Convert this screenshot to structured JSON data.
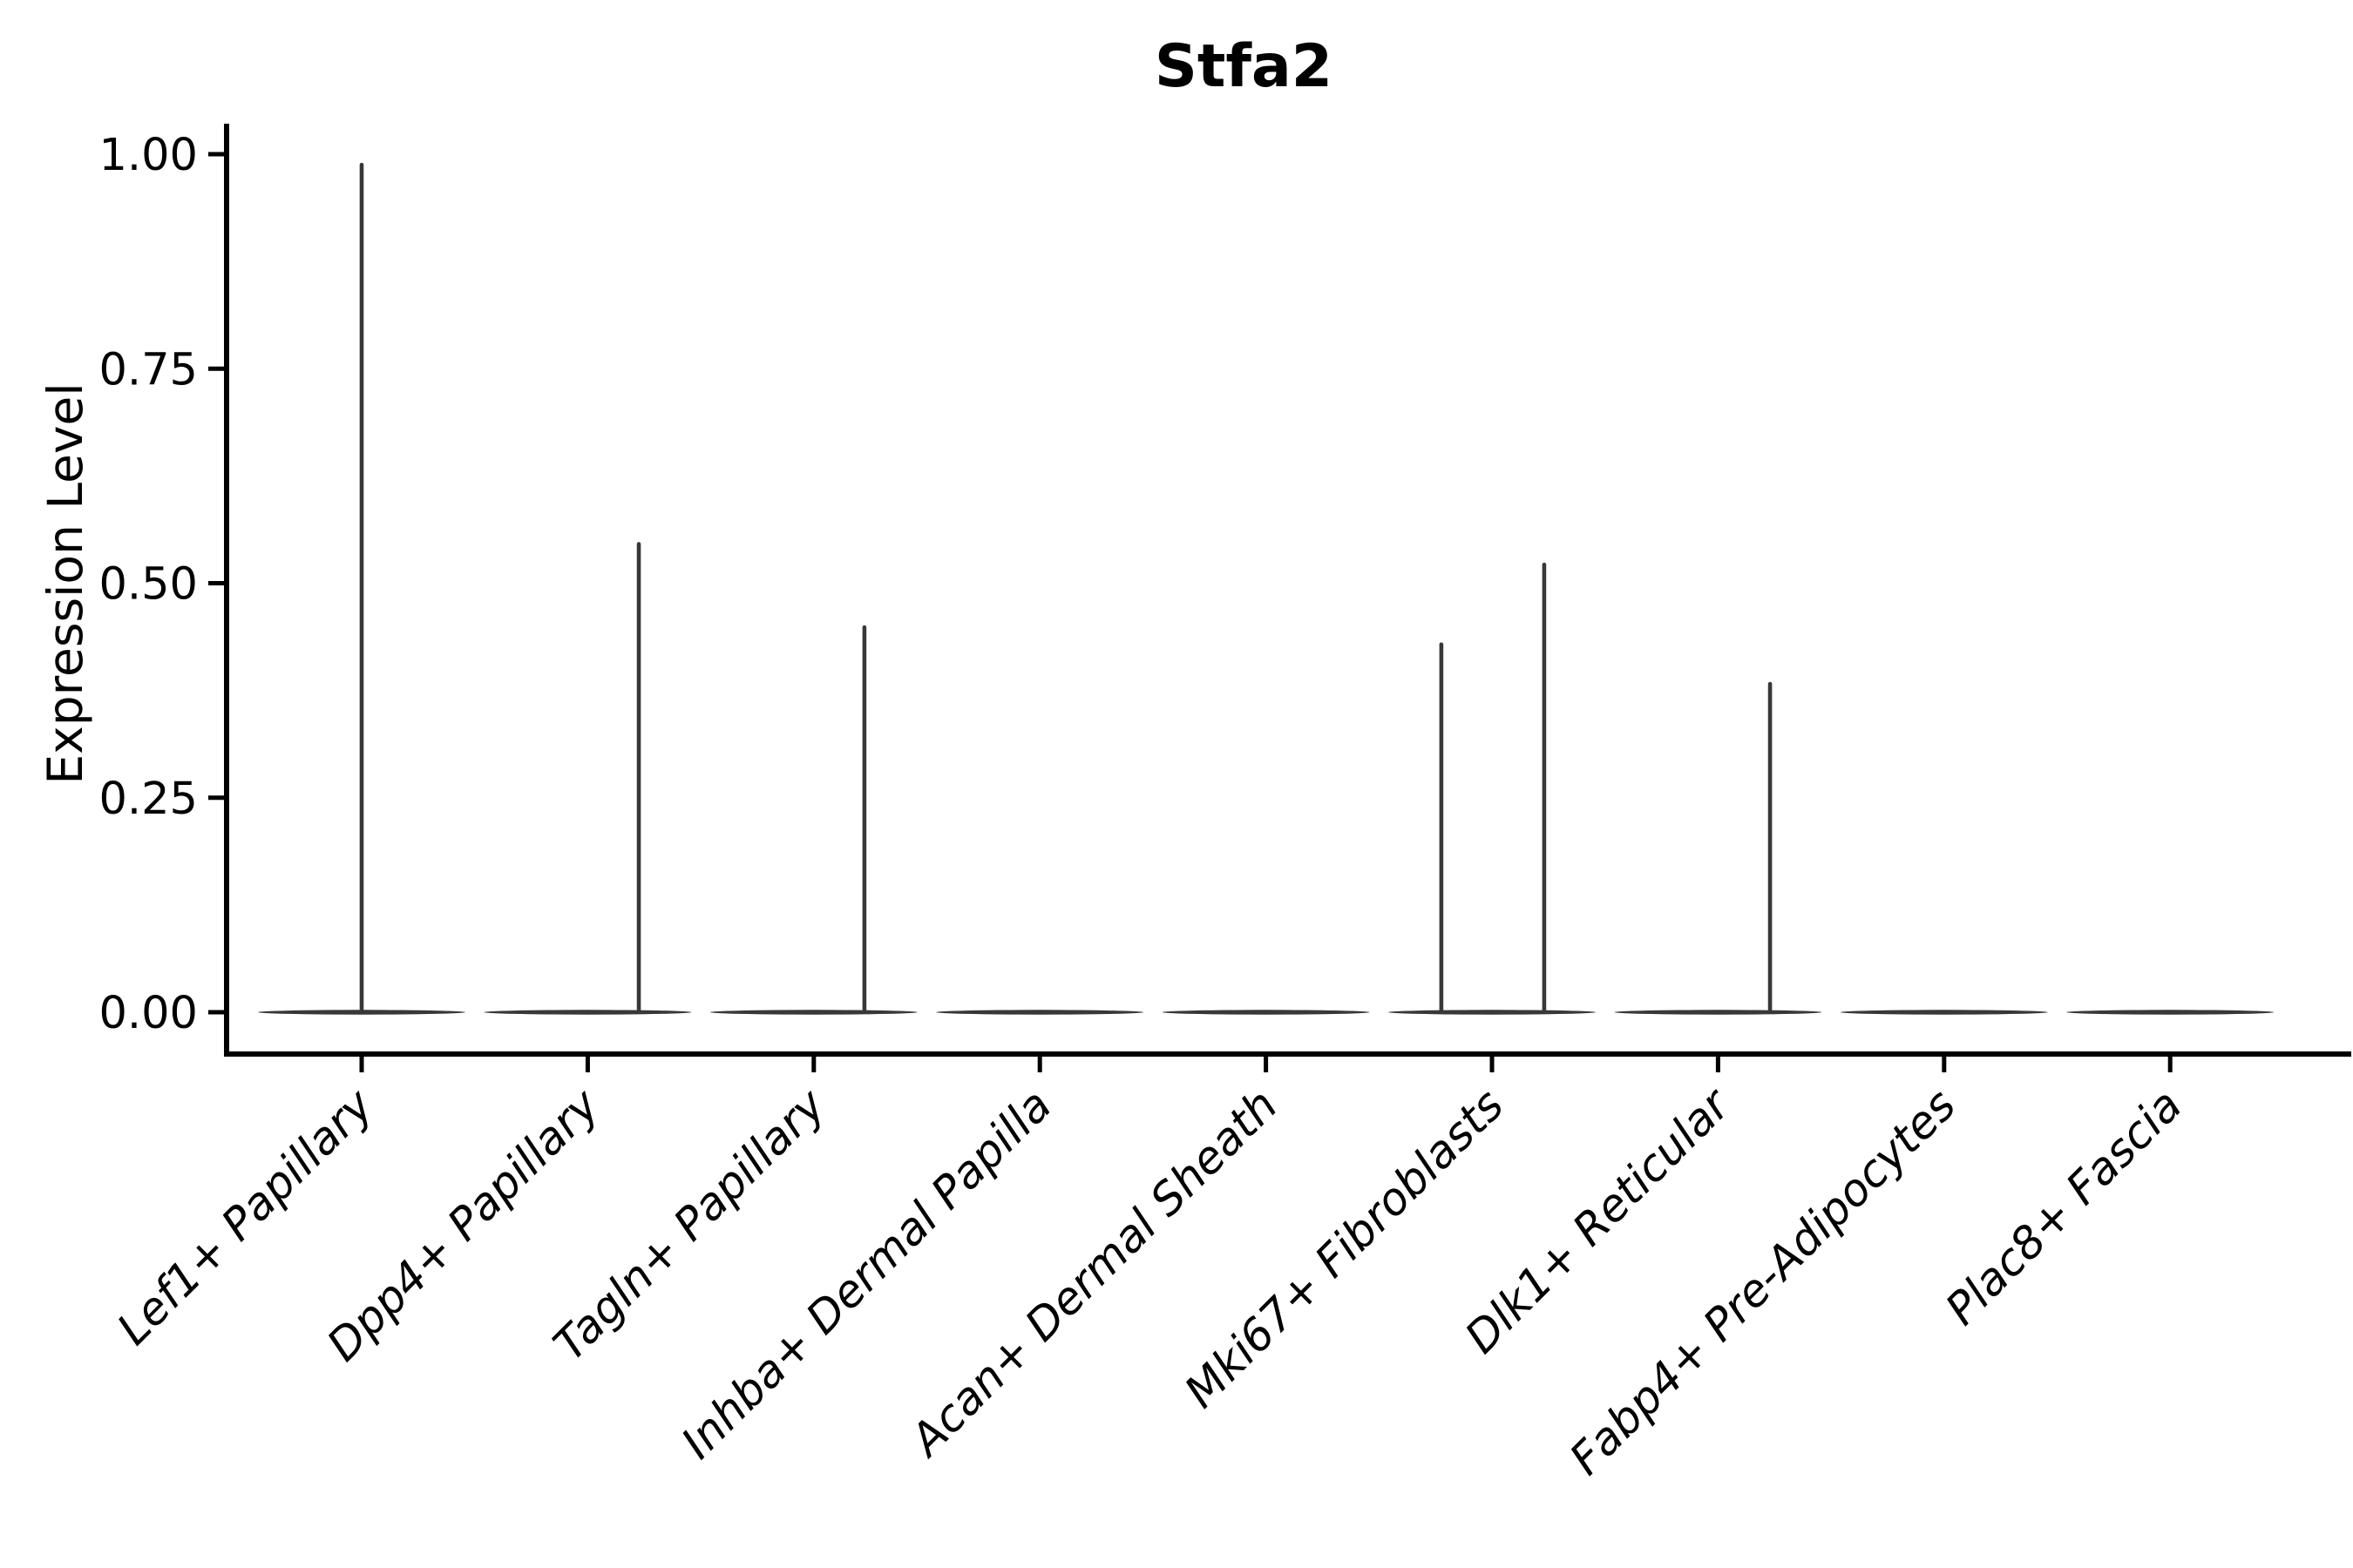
{
  "chart_data": {
    "type": "violin",
    "title": "Stfa2",
    "xlabel": "",
    "ylabel": "Expression Level",
    "ylim": [
      0,
      1.0
    ],
    "yticks": [
      {
        "value": 0.0,
        "label": "0.00"
      },
      {
        "value": 0.25,
        "label": "0.25"
      },
      {
        "value": 0.5,
        "label": "0.50"
      },
      {
        "value": 0.75,
        "label": "0.75"
      },
      {
        "value": 1.0,
        "label": "1.00"
      }
    ],
    "categories": [
      "Lef1+ Papillary",
      "Dpp4+ Papillary",
      "Tagln+ Papillary",
      "Inhba+ Dermal Papilla",
      "Acan+ Dermal Sheath",
      "Mki67+ Fibroblasts",
      "Dlk1+ Reticular",
      "Fabp4+ Pre-Adipocytes",
      "Plac8+ Fascia"
    ],
    "violins": [
      {
        "category": "Lef1+ Papillary",
        "baseline": 0.0,
        "spikes": [
          {
            "offset_frac": 0.0,
            "max": 0.99
          }
        ]
      },
      {
        "category": "Dpp4+ Papillary",
        "baseline": 0.0,
        "spikes": [
          {
            "offset_frac": 0.226,
            "max": 0.548
          }
        ]
      },
      {
        "category": "Tagln+ Papillary",
        "baseline": 0.0,
        "spikes": [
          {
            "offset_frac": 0.224,
            "max": 0.451
          }
        ]
      },
      {
        "category": "Inhba+ Dermal Papilla",
        "baseline": 0.0,
        "spikes": []
      },
      {
        "category": "Acan+ Dermal Sheath",
        "baseline": 0.0,
        "spikes": []
      },
      {
        "category": "Mki67+ Fibroblasts",
        "baseline": 0.0,
        "spikes": [
          {
            "offset_frac": -0.224,
            "max": 0.431
          },
          {
            "offset_frac": 0.231,
            "max": 0.524
          }
        ]
      },
      {
        "category": "Dlk1+ Reticular",
        "baseline": 0.0,
        "spikes": [
          {
            "offset_frac": 0.23,
            "max": 0.385
          }
        ]
      },
      {
        "category": "Fabp4+ Pre-Adipocytes",
        "baseline": 0.0,
        "spikes": []
      },
      {
        "category": "Plac8+ Fascia",
        "baseline": 0.0,
        "spikes": []
      }
    ],
    "legend": null,
    "grid": false,
    "colors": {
      "violin_stroke": "#383838",
      "axis": "#000000",
      "text": "#000000",
      "background": "#ffffff"
    }
  }
}
